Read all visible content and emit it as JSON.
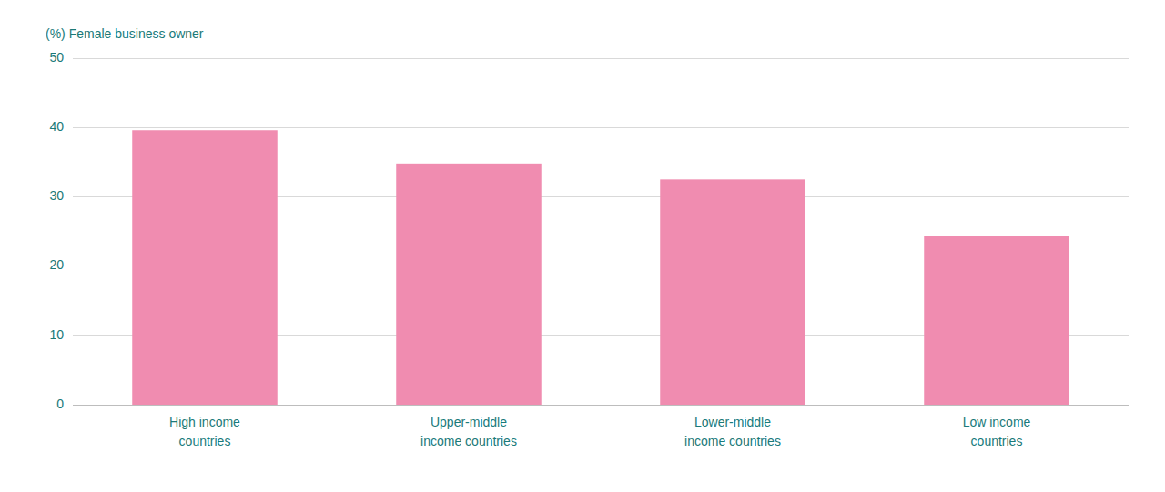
{
  "chart_data": {
    "type": "bar",
    "ylabel": "(%) Female business owner",
    "categories": [
      "High income\ncountries",
      "Upper-middle\nincome countries",
      "Lower-middle\nincome countries",
      "Low income\ncountries"
    ],
    "values": [
      39.6,
      34.8,
      32.5,
      24.3
    ],
    "color": "#F08CB0",
    "ylim": [
      0,
      50
    ],
    "yticks": [
      0,
      10,
      20,
      30,
      40,
      50
    ],
    "grid": true
  }
}
